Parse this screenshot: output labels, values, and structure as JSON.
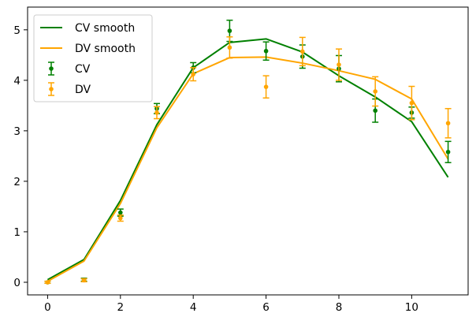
{
  "chart_data": {
    "type": "line",
    "xlim": [
      -0.55,
      11.55
    ],
    "ylim": [
      -0.25,
      5.45
    ],
    "xticks": [
      0,
      2,
      4,
      6,
      8,
      10
    ],
    "yticks": [
      0,
      1,
      2,
      3,
      4,
      5
    ],
    "grid": false,
    "legend_position": "top-left",
    "series": [
      {
        "name": "CV smooth",
        "kind": "line",
        "color": "#008000",
        "x": [
          0,
          1,
          2,
          3,
          4,
          5,
          6,
          7,
          8,
          9,
          10,
          11
        ],
        "y": [
          0.05,
          0.45,
          1.62,
          3.12,
          4.25,
          4.75,
          4.82,
          4.56,
          4.09,
          3.67,
          3.18,
          2.08
        ]
      },
      {
        "name": "DV smooth",
        "kind": "line",
        "color": "#ffa500",
        "x": [
          0,
          1,
          2,
          3,
          4,
          5,
          6,
          7,
          8,
          9,
          10,
          11
        ],
        "y": [
          0.02,
          0.42,
          1.56,
          3.06,
          4.13,
          4.45,
          4.46,
          4.34,
          4.19,
          4.02,
          3.63,
          2.44
        ]
      },
      {
        "name": "CV",
        "kind": "errorbar",
        "color": "#008000",
        "x": [
          0,
          1,
          2,
          3,
          4,
          5,
          6,
          7,
          8,
          9,
          10,
          11
        ],
        "y": [
          0.0,
          0.05,
          1.38,
          3.44,
          4.25,
          4.98,
          4.58,
          4.47,
          4.23,
          3.4,
          3.36,
          2.58
        ],
        "err": [
          0.02,
          0.03,
          0.07,
          0.1,
          0.1,
          0.21,
          0.18,
          0.23,
          0.26,
          0.23,
          0.11,
          0.21
        ]
      },
      {
        "name": "DV",
        "kind": "errorbar",
        "color": "#ffa500",
        "x": [
          0,
          1,
          2,
          3,
          4,
          5,
          6,
          7,
          8,
          9,
          10,
          11
        ],
        "y": [
          0.0,
          0.04,
          1.27,
          3.36,
          4.12,
          4.65,
          3.87,
          4.57,
          4.31,
          3.78,
          3.55,
          3.15
        ],
        "err": [
          0.02,
          0.03,
          0.06,
          0.12,
          0.13,
          0.21,
          0.22,
          0.28,
          0.31,
          0.29,
          0.33,
          0.29
        ]
      }
    ]
  }
}
